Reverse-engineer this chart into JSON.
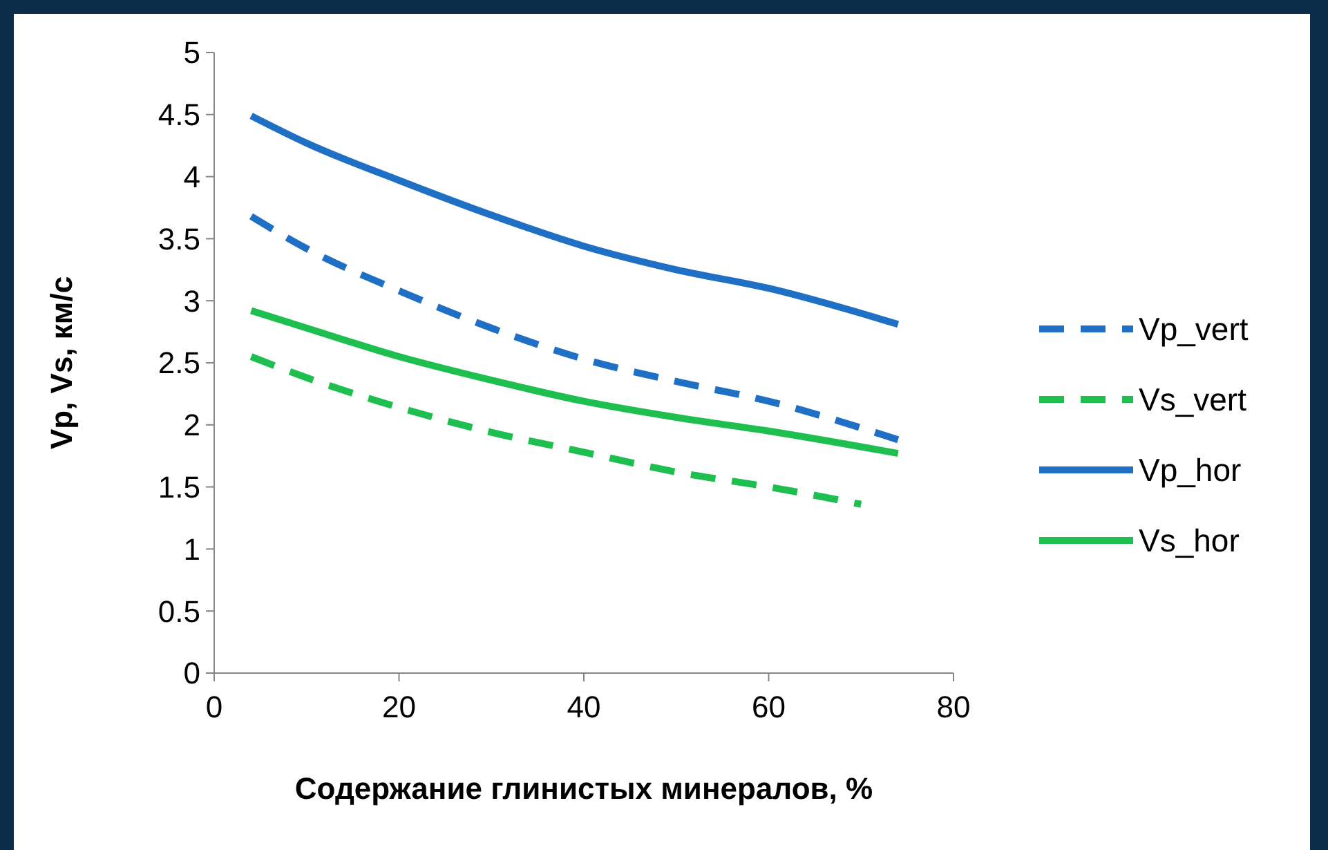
{
  "chart_data": {
    "type": "line",
    "xlabel": "Содержание глинистых минералов, %",
    "ylabel": "Vp, Vs, км/с",
    "xlim": [
      0,
      80
    ],
    "xticks": [
      0,
      20,
      40,
      60,
      80
    ],
    "ylim": [
      0,
      5
    ],
    "yticks": [
      0,
      0.5,
      1,
      1.5,
      2,
      2.5,
      3,
      3.5,
      4,
      4.5,
      5
    ],
    "grid": false,
    "legend": "right",
    "series": [
      {
        "name": "Vp_vert",
        "color": "#1f6fc5",
        "line_style": "dashed",
        "x": [
          4,
          10,
          20,
          30,
          40,
          50,
          60,
          74
        ],
        "values": [
          3.68,
          3.42,
          3.08,
          2.78,
          2.53,
          2.35,
          2.19,
          1.88
        ]
      },
      {
        "name": "Vs_vert",
        "color": "#1fbf4f",
        "line_style": "dashed",
        "x": [
          4,
          10,
          20,
          30,
          40,
          50,
          60,
          70
        ],
        "values": [
          2.55,
          2.38,
          2.14,
          1.94,
          1.78,
          1.62,
          1.5,
          1.36
        ]
      },
      {
        "name": "Vp_hor",
        "color": "#1f6fc5",
        "line_style": "solid",
        "x": [
          4,
          10,
          20,
          30,
          40,
          50,
          60,
          74
        ],
        "values": [
          4.49,
          4.27,
          3.97,
          3.69,
          3.44,
          3.25,
          3.1,
          2.81
        ]
      },
      {
        "name": "Vs_hor",
        "color": "#1fbf4f",
        "line_style": "solid",
        "x": [
          4,
          10,
          20,
          30,
          40,
          50,
          60,
          74
        ],
        "values": [
          2.92,
          2.78,
          2.55,
          2.36,
          2.19,
          2.06,
          1.95,
          1.77
        ]
      }
    ]
  }
}
